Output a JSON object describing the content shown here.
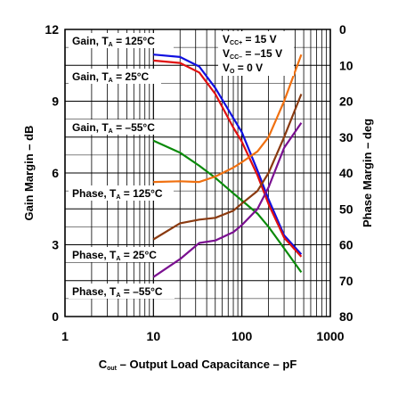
{
  "chart_data": {
    "type": "line",
    "xlabel": {
      "main": "C",
      "sub": "out",
      "rest": " – Output Load Capacitance – pF"
    },
    "ylabel": "Gain Margin – dB",
    "y2label": "Phase Margin – deg",
    "xscale": "log",
    "xlim": [
      1,
      1000
    ],
    "ylim": [
      0,
      12
    ],
    "y2lim": [
      0,
      80
    ],
    "y2_inverted": true,
    "grid": true,
    "x_ticks": [
      {
        "v": 1,
        "label": "1"
      },
      {
        "v": 10,
        "label": "10"
      },
      {
        "v": 100,
        "label": "100"
      },
      {
        "v": 1000,
        "label": "1000"
      }
    ],
    "y_ticks": [
      {
        "v": 0,
        "label": "0"
      },
      {
        "v": 3,
        "label": "3"
      },
      {
        "v": 6,
        "label": "6"
      },
      {
        "v": 9,
        "label": "9"
      },
      {
        "v": 12,
        "label": "12"
      }
    ],
    "y2_ticks": [
      {
        "v": 0,
        "label": "0"
      },
      {
        "v": 10,
        "label": "10"
      },
      {
        "v": 20,
        "label": "20"
      },
      {
        "v": 30,
        "label": "30"
      },
      {
        "v": 40,
        "label": "40"
      },
      {
        "v": 50,
        "label": "50"
      },
      {
        "v": 60,
        "label": "60"
      },
      {
        "v": 70,
        "label": "70"
      },
      {
        "v": 80,
        "label": "80"
      }
    ],
    "series": [
      {
        "axis": "left",
        "color": "#1010e0",
        "x": [
          10,
          20,
          33,
          50,
          80,
          100,
          150,
          200,
          300,
          470
        ],
        "y": [
          10.95,
          10.85,
          10.45,
          9.55,
          8.3,
          7.7,
          6.1,
          4.9,
          3.4,
          2.6
        ]
      },
      {
        "axis": "left",
        "color": "#e01010",
        "x": [
          10,
          20,
          33,
          50,
          80,
          100,
          150,
          200,
          300,
          470
        ],
        "y": [
          10.7,
          10.6,
          10.2,
          9.3,
          7.9,
          7.3,
          5.9,
          4.7,
          3.3,
          2.5
        ]
      },
      {
        "axis": "left",
        "color": "#0a8a0a",
        "x": [
          10,
          20,
          33,
          50,
          80,
          100,
          150,
          200,
          300,
          470
        ],
        "y": [
          7.35,
          6.85,
          6.3,
          5.8,
          5.15,
          4.85,
          4.3,
          3.75,
          2.85,
          1.85
        ]
      },
      {
        "axis": "right",
        "color": "#f07010",
        "x": [
          10,
          20,
          33,
          50,
          80,
          100,
          150,
          200,
          300,
          470
        ],
        "y": [
          42.5,
          42.3,
          42.5,
          41.0,
          38.5,
          37.0,
          34.0,
          30.0,
          20.0,
          7.0
        ]
      },
      {
        "axis": "right",
        "color": "#8a3a10",
        "x": [
          10,
          20,
          33,
          50,
          80,
          100,
          150,
          200,
          300,
          470
        ],
        "y": [
          58.5,
          54.0,
          53.0,
          52.5,
          50.5,
          48.5,
          45.0,
          40.0,
          30.0,
          18.0
        ]
      },
      {
        "axis": "right",
        "color": "#7a1090",
        "x": [
          10,
          20,
          33,
          50,
          80,
          100,
          150,
          200,
          300,
          470
        ],
        "y": [
          69.0,
          64.0,
          59.5,
          58.8,
          56.5,
          54.5,
          50.0,
          44.0,
          33.0,
          26.0
        ]
      }
    ],
    "annotations": {
      "gain_125": {
        "a": "Gain, T",
        "b": "A",
        "c": " = 125°C"
      },
      "gain_25": {
        "a": "Gain, T",
        "b": "A",
        "c": " = 25°C"
      },
      "gain_m55": {
        "a": "Gain, T",
        "b": "A",
        "c": " = –55°C"
      },
      "phase_125": {
        "a": "Phase, T",
        "b": "A",
        "c": " = 125°C"
      },
      "phase_25": {
        "a": "Phase, T",
        "b": "A",
        "c": " = 25°C"
      },
      "phase_m55": {
        "a": "Phase, T",
        "b": "A",
        "c": " = –55°C"
      },
      "vccp": {
        "a": "V",
        "b": "CC+",
        "c": " = 15 V"
      },
      "vccm": {
        "a": "V",
        "b": "CC–",
        "c": " = –15 V"
      },
      "vo": {
        "a": "V",
        "b": "O",
        "c": " = 0 V"
      }
    }
  }
}
